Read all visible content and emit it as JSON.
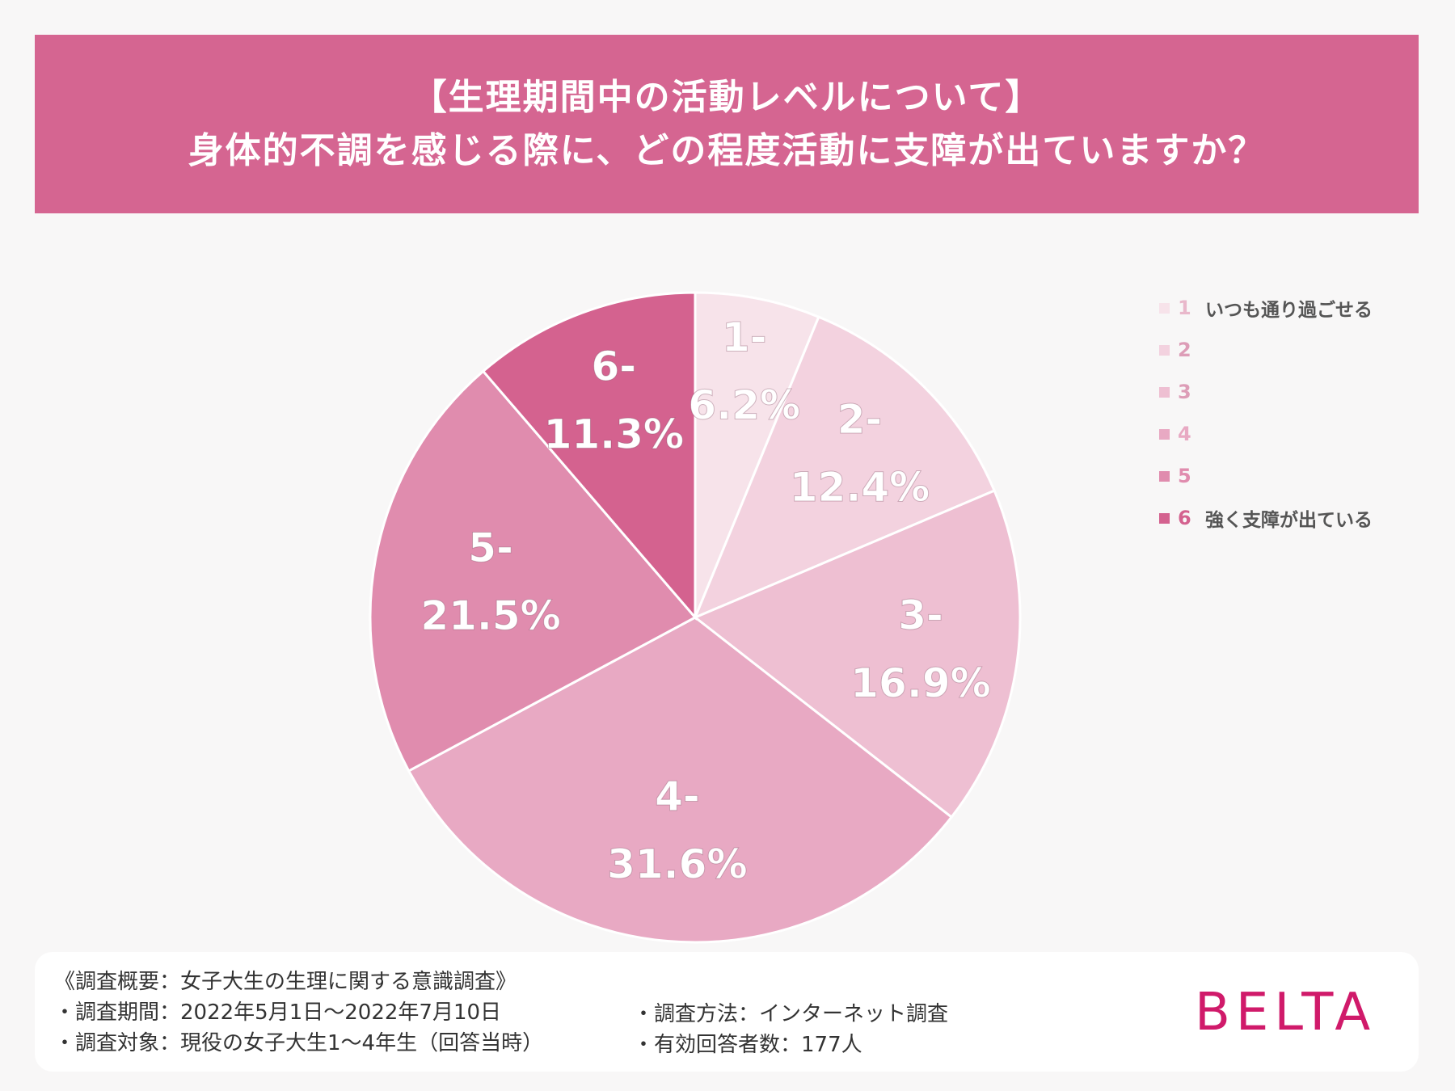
{
  "title": {
    "line1": "【生理期間中の活動レベルについて】",
    "line2": "身体的不調を感じる際に、どの程度活動に支障が出ていますか？"
  },
  "chart_data": {
    "type": "pie",
    "categories": [
      "1",
      "2",
      "3",
      "4",
      "5",
      "6"
    ],
    "values": [
      6.2,
      12.4,
      16.9,
      31.6,
      21.5,
      11.3
    ],
    "data_labels": [
      "1-",
      "6.2%",
      "2-",
      "12.4%",
      "3-",
      "16.9%",
      "4-",
      "31.6%",
      "5-",
      "21.5%",
      "6-",
      "11.3%"
    ],
    "colors": [
      "#f7e3ea",
      "#f3d2df",
      "#eebfd2",
      "#e8a9c3",
      "#e08cae",
      "#d4628f"
    ],
    "start": "12 o'clock",
    "direction": "clockwise"
  },
  "legend": {
    "items": [
      {
        "num": "1",
        "label": "いつも通り過ごせる"
      },
      {
        "num": "2",
        "label": ""
      },
      {
        "num": "3",
        "label": ""
      },
      {
        "num": "4",
        "label": ""
      },
      {
        "num": "5",
        "label": ""
      },
      {
        "num": "6",
        "label": "強く支障が出ている"
      }
    ],
    "placement": "right"
  },
  "footer": {
    "summary": "《調査概要：女子大生の生理に関する意識調査》",
    "period": "・調査期間：2022年5月1日〜2022年7月10日",
    "target": "・調査対象：現役の女子大生1〜4年生（回答当時）",
    "method": "・調査方法：インターネット調査",
    "respondents": "・有効回答者数：177人"
  },
  "logo": "BELTA"
}
